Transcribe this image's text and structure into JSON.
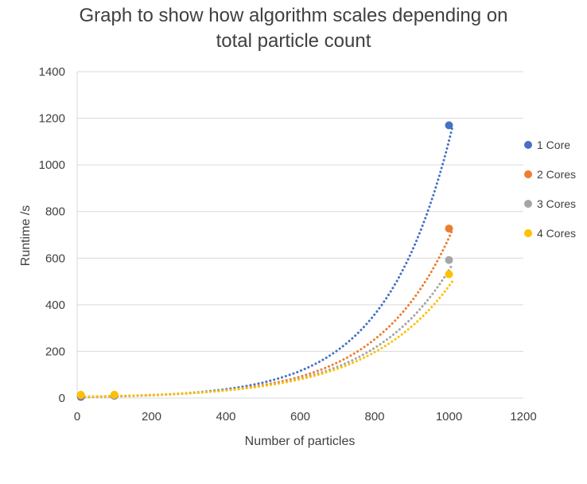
{
  "chart_data": {
    "type": "scatter",
    "title_lines": [
      "Graph to show how algorithm scales depending  on",
      "total particle count"
    ],
    "xlabel": "Number  of particles",
    "ylabel": "Runtime  /s",
    "xlim": [
      0,
      1200
    ],
    "ylim": [
      0,
      1400
    ],
    "x_ticks": [
      0,
      200,
      400,
      600,
      800,
      1000,
      1200
    ],
    "y_ticks": [
      0,
      200,
      400,
      600,
      800,
      1000,
      1200,
      1400
    ],
    "grid": "horizontal",
    "legend_position": "right",
    "trendline": "exponential (dotted)",
    "trend_x_range": [
      10,
      1010
    ],
    "series": [
      {
        "name": "1 Core",
        "color": "#4472C4",
        "points": [
          [
            10,
            5
          ],
          [
            100,
            10
          ],
          [
            1000,
            1170
          ]
        ],
        "trend_a": 4.0,
        "trend_b": 0.00562
      },
      {
        "name": "2 Cores",
        "color": "#ED7D31",
        "points": [
          [
            10,
            10
          ],
          [
            100,
            12
          ],
          [
            1000,
            727
          ]
        ],
        "trend_a": 4.5,
        "trend_b": 0.00503
      },
      {
        "name": "3 Cores",
        "color": "#A5A5A5",
        "points": [
          [
            10,
            12
          ],
          [
            100,
            13
          ],
          [
            1000,
            592
          ]
        ],
        "trend_a": 5.0,
        "trend_b": 0.0047
      },
      {
        "name": "4 Cores",
        "color": "#FFC000",
        "points": [
          [
            10,
            14
          ],
          [
            100,
            14
          ],
          [
            1000,
            531
          ]
        ],
        "trend_a": 5.5,
        "trend_b": 0.00447
      }
    ]
  }
}
